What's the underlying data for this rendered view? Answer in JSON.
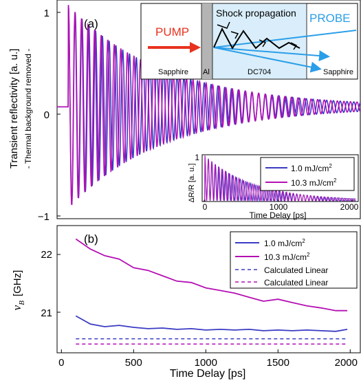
{
  "colors": {
    "blue": "#3a3ac4",
    "magenta": "#b40fb4",
    "pump": "#e8321e",
    "probe": "#2a9ee8",
    "dc704_fill": "#d9eefa",
    "al_fill": "#b4b4b4"
  },
  "panel_a": {
    "tag": "(a)",
    "ylabel_main": "Transient reflectivity  [a. u.]",
    "ylabel_sub": "- Thermal background removed -",
    "yticks": [
      "1",
      "0",
      "−1"
    ],
    "schematic": {
      "pump": "PUMP",
      "probe": "PROBE",
      "shock": "Shock propagation",
      "layers": [
        "Sapphire",
        "Al",
        "DC704",
        "Sapphire"
      ]
    },
    "inset": {
      "ylabel": "ΔR/R  [a. u.]",
      "ytick": "1",
      "xlabel": "Time Delay  [ps]",
      "xticks": [
        "0",
        "1000",
        "2000"
      ],
      "legend": [
        "1.0 mJ/cm",
        "10.3 mJ/cm"
      ],
      "legend_sup": "2"
    }
  },
  "panel_b": {
    "tag": "(b)",
    "ylabel": "ν",
    "ylabel_sub": "B",
    "ylabel_unit": "[GHz]",
    "yticks": [
      "22",
      "21"
    ],
    "xticks": [
      "0",
      "500",
      "1000",
      "1500",
      "2000"
    ],
    "xlabel": "Time Delay [ps]",
    "legend": [
      "1.0 mJ/cm",
      "10.3 mJ/cm",
      "Calculated Linear",
      "Calculated Linear"
    ],
    "legend_sup": "2"
  },
  "chart_data": [
    {
      "type": "line",
      "panel": "a",
      "x_range": [
        -80,
        2060
      ],
      "ylim": [
        -1.1,
        1.05
      ],
      "series": [
        {
          "name": "1.0 mJ/cm2",
          "color": "blue",
          "frequency_GHz": 20.85,
          "amplitude_start": 1.0,
          "amplitude_end": 0.05
        },
        {
          "name": "10.3 mJ/cm2",
          "color": "magenta",
          "frequency_GHz": 21.6,
          "amplitude_start": 1.0,
          "amplitude_end": 0.05
        }
      ]
    },
    {
      "type": "line",
      "panel": "b",
      "xlabel": "Time Delay [ps]",
      "x_range": [
        -30,
        2070
      ],
      "ylim": [
        20.45,
        22.35
      ],
      "x": [
        100,
        200,
        300,
        400,
        500,
        600,
        700,
        800,
        900,
        1000,
        1100,
        1200,
        1300,
        1400,
        1500,
        1600,
        1700,
        1800,
        1900,
        1980
      ],
      "series": [
        {
          "name": "1.0 mJ/cm2",
          "style": "solid",
          "color": "blue",
          "values": [
            21.0,
            20.88,
            20.84,
            20.86,
            20.83,
            20.81,
            20.82,
            20.8,
            20.81,
            20.79,
            20.8,
            20.79,
            20.8,
            20.78,
            20.79,
            20.78,
            20.79,
            20.78,
            20.77,
            20.8
          ]
        },
        {
          "name": "10.3 mJ/cm2",
          "style": "solid",
          "color": "magenta",
          "values": [
            22.15,
            22.0,
            21.9,
            21.85,
            21.72,
            21.68,
            21.6,
            21.52,
            21.5,
            21.42,
            21.38,
            21.34,
            21.28,
            21.22,
            21.25,
            21.2,
            21.15,
            21.12,
            21.08,
            21.08
          ]
        },
        {
          "name": "Calculated Linear",
          "style": "dashed",
          "color": "blue",
          "values": [
            20.66,
            20.66,
            20.66,
            20.66,
            20.66,
            20.66,
            20.66,
            20.66,
            20.66,
            20.66,
            20.66,
            20.66,
            20.66,
            20.66,
            20.66,
            20.66,
            20.66,
            20.66,
            20.66,
            20.66
          ]
        },
        {
          "name": "Calculated Linear",
          "style": "dashed",
          "color": "magenta",
          "values": [
            20.58,
            20.58,
            20.58,
            20.58,
            20.58,
            20.58,
            20.58,
            20.58,
            20.58,
            20.58,
            20.58,
            20.58,
            20.58,
            20.58,
            20.58,
            20.58,
            20.58,
            20.58,
            20.58,
            20.58
          ]
        }
      ]
    }
  ]
}
